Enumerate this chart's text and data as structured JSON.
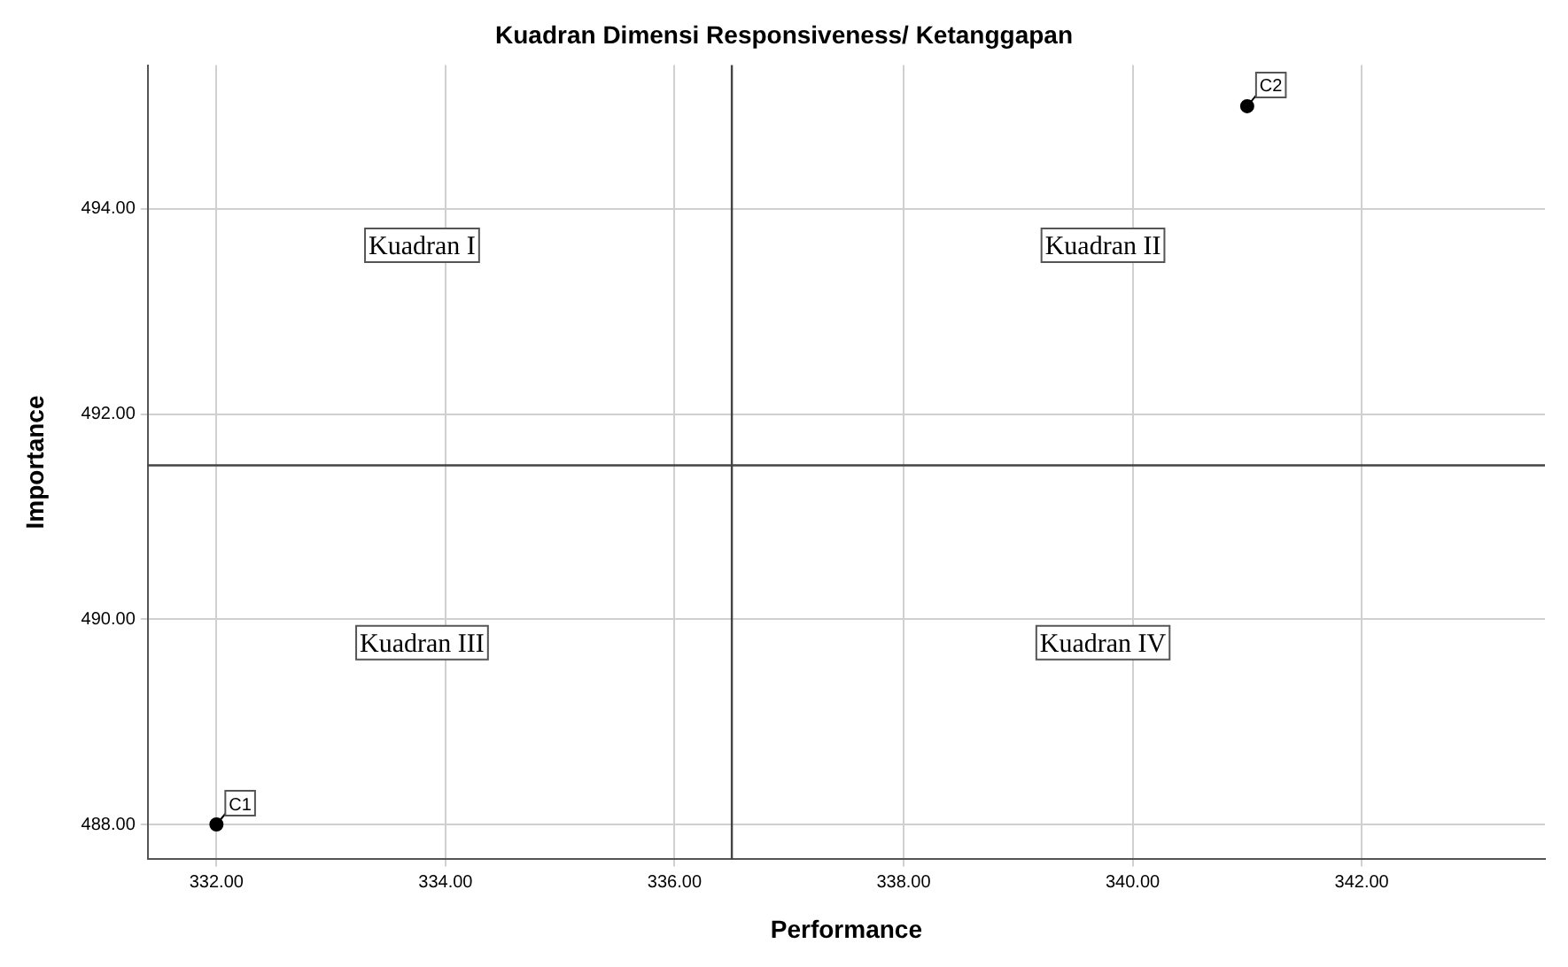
{
  "chart_data": {
    "type": "scatter",
    "title": "Kuadran Dimensi Responsiveness/ Ketanggapan",
    "xlabel": "Performance",
    "ylabel": "Importance",
    "x": [
      332,
      341
    ],
    "values": [
      488,
      495
    ],
    "value_labels": [
      "C1",
      "C2"
    ],
    "color": "#000000",
    "marker": "circle",
    "xlim": [
      331.4,
      343.6
    ],
    "ylim": [
      487.66,
      495.4
    ],
    "xticks": [
      {
        "value": 332,
        "label": "332.00"
      },
      {
        "value": 334,
        "label": "334.00"
      },
      {
        "value": 336,
        "label": "336.00"
      },
      {
        "value": 338,
        "label": "338.00"
      },
      {
        "value": 340,
        "label": "340.00"
      },
      {
        "value": 342,
        "label": "342.00"
      }
    ],
    "yticks": [
      {
        "value": 488,
        "label": "488.00"
      },
      {
        "value": 490,
        "label": "490.00"
      },
      {
        "value": 492,
        "label": "492.00"
      },
      {
        "value": 494,
        "label": "494.00"
      }
    ],
    "ref_lines": [
      {
        "axis": "x",
        "value": 336.5,
        "color": "#444444"
      },
      {
        "axis": "y",
        "value": 491.5,
        "color": "#444444"
      }
    ],
    "annotations": [
      "Kuadran I",
      "Kuadran II",
      "Kuadran III",
      "Kuadran IV"
    ],
    "grid": true,
    "legend": false
  }
}
